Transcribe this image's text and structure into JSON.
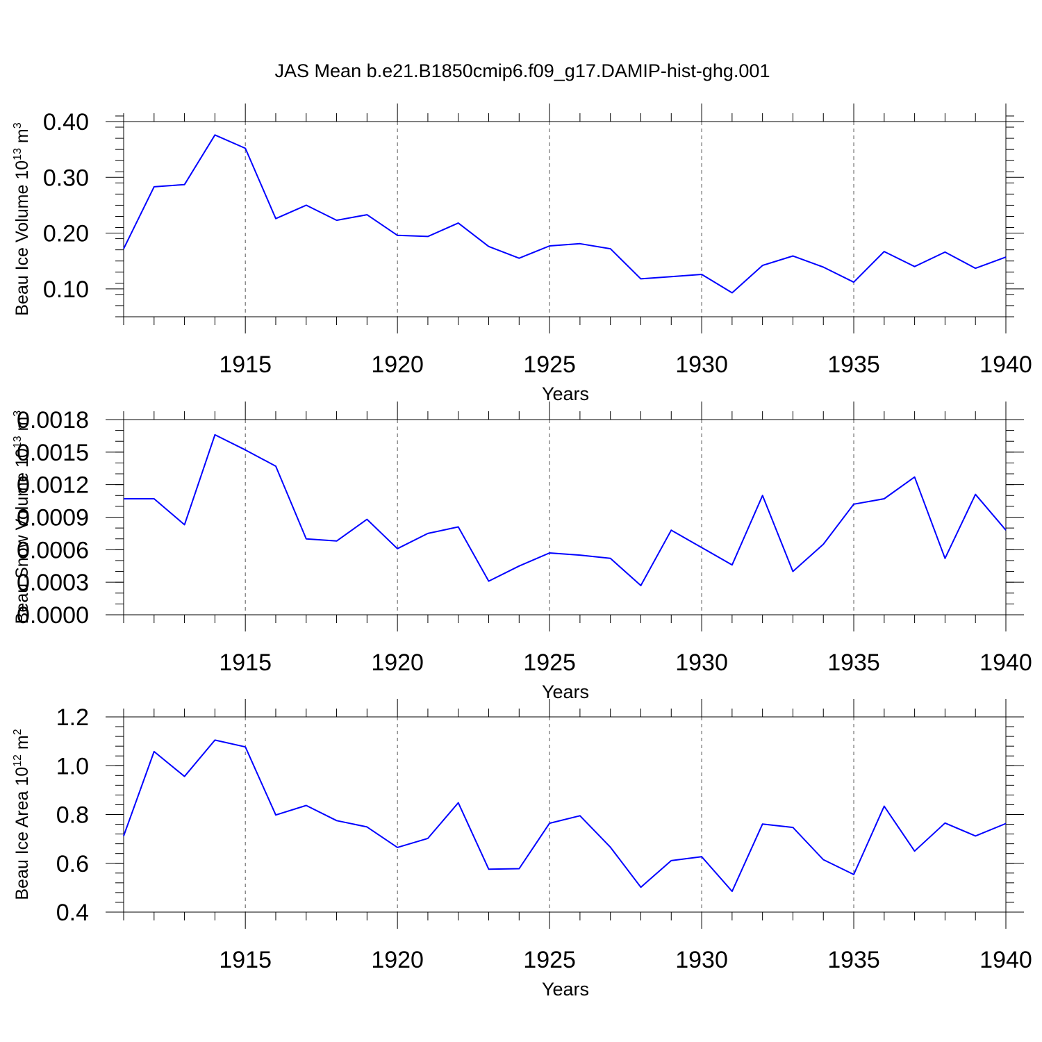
{
  "title": "JAS Mean b.e21.B1850cmip6.f09_g17.DAMIP-hist-ghg.001",
  "colors": {
    "line": "#0000ff",
    "axis": "#000000",
    "grid": "#555555"
  },
  "chart_data": [
    {
      "type": "line",
      "ylabel": {
        "text": "Beau Ice Volume 10",
        "exp": "13",
        "unit": " m",
        "unit_exp": "3"
      },
      "xlabel": "Years",
      "xlim": [
        1911,
        1940
      ],
      "ylim": [
        0.05,
        0.4
      ],
      "yticks": [
        0.1,
        0.2,
        0.3,
        0.4
      ],
      "ytick_labels": [
        "0.10",
        "0.20",
        "0.30",
        "0.40"
      ],
      "yminor": 0.02,
      "xticks": [
        1915,
        1920,
        1925,
        1930,
        1935,
        1940
      ],
      "xtick_labels": [
        "1915",
        "1920",
        "1925",
        "1930",
        "1935",
        "1940"
      ],
      "grid": "vertical dashed at major x ticks",
      "x": [
        1911,
        1912,
        1913,
        1914,
        1915,
        1916,
        1917,
        1918,
        1919,
        1920,
        1921,
        1922,
        1923,
        1924,
        1925,
        1926,
        1927,
        1928,
        1929,
        1930,
        1931,
        1932,
        1933,
        1934,
        1935,
        1936,
        1937,
        1938,
        1939,
        1940
      ],
      "series": [
        {
          "name": "Beau Ice Volume",
          "values": [
            0.172,
            0.283,
            0.287,
            0.376,
            0.352,
            0.226,
            0.25,
            0.223,
            0.233,
            0.196,
            0.194,
            0.218,
            0.176,
            0.155,
            0.177,
            0.181,
            0.172,
            0.118,
            0.122,
            0.126,
            0.093,
            0.142,
            0.159,
            0.139,
            0.112,
            0.167,
            0.14,
            0.166,
            0.137,
            0.157
          ]
        }
      ]
    },
    {
      "type": "line",
      "ylabel": {
        "text": "Beau Snow Volume 10",
        "exp": "13",
        "unit": " m",
        "unit_exp": "3"
      },
      "xlabel": "Years",
      "xlim": [
        1911,
        1940
      ],
      "ylim": [
        0.0,
        0.0018
      ],
      "yticks": [
        0.0,
        0.0003,
        0.0006,
        0.0009,
        0.0012,
        0.0015,
        0.0018
      ],
      "ytick_labels": [
        "0.0000",
        "0.0003",
        "0.0006",
        "0.0009",
        "0.0012",
        "0.0015",
        "0.0018"
      ],
      "yminor": 0.0001,
      "xticks": [
        1915,
        1920,
        1925,
        1930,
        1935,
        1940
      ],
      "xtick_labels": [
        "1915",
        "1920",
        "1925",
        "1930",
        "1935",
        "1940"
      ],
      "grid": "vertical dashed at major x ticks",
      "x": [
        1911,
        1912,
        1913,
        1914,
        1915,
        1916,
        1917,
        1918,
        1919,
        1920,
        1921,
        1922,
        1923,
        1924,
        1925,
        1926,
        1927,
        1928,
        1929,
        1930,
        1931,
        1932,
        1933,
        1934,
        1935,
        1936,
        1937,
        1938,
        1939,
        1940
      ],
      "series": [
        {
          "name": "Beau Snow Volume",
          "values": [
            0.00107,
            0.00107,
            0.00083,
            0.00166,
            0.00152,
            0.00137,
            0.0007,
            0.00068,
            0.00088,
            0.00061,
            0.00075,
            0.00081,
            0.00031,
            0.00045,
            0.00057,
            0.00055,
            0.00052,
            0.00027,
            0.00078,
            0.00062,
            0.00046,
            0.0011,
            0.0004,
            0.00065,
            0.00102,
            0.00107,
            0.00127,
            0.00052,
            0.00111,
            0.00078
          ]
        }
      ]
    },
    {
      "type": "line",
      "ylabel": {
        "text": "Beau Ice Area 10",
        "exp": "12",
        "unit": " m",
        "unit_exp": "2"
      },
      "xlabel": "Years",
      "xlim": [
        1911,
        1940
      ],
      "ylim": [
        0.4,
        1.2
      ],
      "yticks": [
        0.4,
        0.6,
        0.8,
        1.0,
        1.2
      ],
      "ytick_labels": [
        "0.4",
        "0.6",
        "0.8",
        "1.0",
        "1.2"
      ],
      "yminor": 0.04,
      "xticks": [
        1915,
        1920,
        1925,
        1930,
        1935,
        1940
      ],
      "xtick_labels": [
        "1915",
        "1920",
        "1925",
        "1930",
        "1935",
        "1940"
      ],
      "grid": "vertical dashed at major x ticks",
      "x": [
        1911,
        1912,
        1913,
        1914,
        1915,
        1916,
        1917,
        1918,
        1919,
        1920,
        1921,
        1922,
        1923,
        1924,
        1925,
        1926,
        1927,
        1928,
        1929,
        1930,
        1931,
        1932,
        1933,
        1934,
        1935,
        1936,
        1937,
        1938,
        1939,
        1940
      ],
      "series": [
        {
          "name": "Beau Ice Area",
          "values": [
            0.712,
            1.058,
            0.956,
            1.105,
            1.077,
            0.798,
            0.837,
            0.775,
            0.749,
            0.665,
            0.702,
            0.848,
            0.576,
            0.578,
            0.764,
            0.795,
            0.666,
            0.502,
            0.611,
            0.627,
            0.485,
            0.761,
            0.747,
            0.615,
            0.554,
            0.834,
            0.65,
            0.765,
            0.712,
            0.763
          ]
        }
      ]
    }
  ]
}
